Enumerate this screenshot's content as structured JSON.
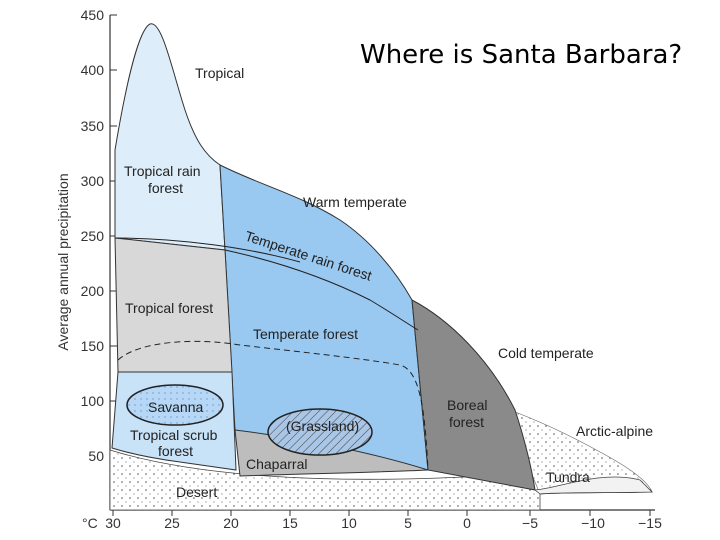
{
  "question": "Where is Santa Barbara?",
  "y_axis": {
    "label": "Average annual precipitation",
    "ticks": [
      "450",
      "400",
      "350",
      "300",
      "250",
      "200",
      "150",
      "100",
      "50"
    ]
  },
  "x_axis": {
    "unit": "°C",
    "ticks": [
      "30",
      "25",
      "20",
      "15",
      "10",
      "5",
      "0",
      "−5",
      "−10",
      "−15"
    ]
  },
  "zones": {
    "tropical": "Tropical",
    "warm_temperate": "Warm temperate",
    "cold_temperate": "Cold temperate",
    "arctic_alpine": "Arctic-alpine"
  },
  "biomes": {
    "tropical_rain_forest_1": "Tropical rain",
    "tropical_rain_forest_2": "forest",
    "temperate_rain_forest": "Temperate rain forest",
    "tropical_forest": "Tropical forest",
    "temperate_forest": "Temperate forest",
    "savanna": "Savanna",
    "tropical_scrub_1": "Tropical scrub",
    "tropical_scrub_2": "forest",
    "grassland": "(Grassland)",
    "boreal_1": "Boreal",
    "boreal_2": "forest",
    "chaparral": "Chaparral",
    "tundra": "Tundra",
    "desert": "Desert"
  },
  "colors": {
    "tropical_rain_forest": "#ddeefa",
    "temperate_blue": "#99c8f0",
    "gray_light": "#d8d8d8",
    "gray_mid": "#bdbdbd",
    "boreal_gray": "#8a8a8a",
    "scrub_blue": "#c8e2f8",
    "tropical_light": "#e6f2fc"
  }
}
